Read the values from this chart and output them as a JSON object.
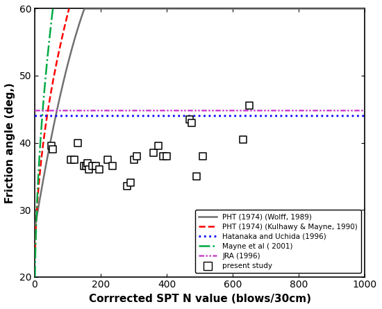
{
  "title": "",
  "xlabel": "Corrrected SPT N value (blows/30cm)",
  "ylabel": "Friction angle (deg,)",
  "xlim": [
    0,
    1000
  ],
  "ylim": [
    20,
    60
  ],
  "xticks": [
    0,
    200,
    400,
    600,
    800,
    1000
  ],
  "yticks": [
    20,
    30,
    40,
    50,
    60
  ],
  "scatter_x": [
    50,
    55,
    110,
    120,
    130,
    150,
    155,
    160,
    165,
    175,
    185,
    195,
    220,
    235,
    280,
    290,
    300,
    310,
    360,
    375,
    390,
    400,
    470,
    475,
    490,
    510,
    630,
    650
  ],
  "scatter_y": [
    39.5,
    39.0,
    37.5,
    37.5,
    40.0,
    36.5,
    36.5,
    37.0,
    36.0,
    36.5,
    36.5,
    36.0,
    37.5,
    36.5,
    33.5,
    34.0,
    37.5,
    38.0,
    38.5,
    39.5,
    38.0,
    38.0,
    43.5,
    43.0,
    35.0,
    38.0,
    40.5,
    45.5
  ],
  "line_wolff_color": "#707070",
  "line_kulhawy_color": "#ff0000",
  "line_hatanaka_color": "#0000ff",
  "line_mayne_color": "#00aa44",
  "line_jra_color": "#cc44cc",
  "legend_labels": [
    "PHT (1974) (Wolff, 1989)",
    "PHT (1974) (Kulhawy & Mayne, 1990)",
    "Hatanaka and Uchida (1996)",
    "Mayne et al ( 2001)",
    "JRA (1996)",
    "present study"
  ],
  "hatanaka_level": 44.0,
  "jra_level": 44.8,
  "figsize": [
    5.5,
    4.45
  ],
  "dpi": 100
}
